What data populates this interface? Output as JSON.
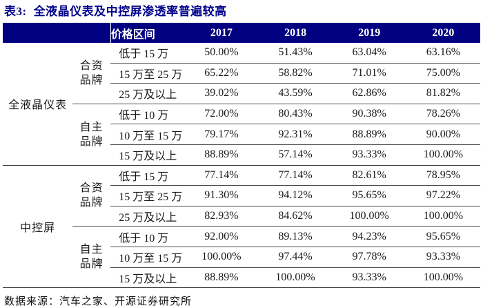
{
  "title": {
    "label": "表3:",
    "text": "全液晶仪表及中控屏渗透率普遍较高"
  },
  "colors": {
    "header_background": "#000080",
    "header_text": "#ffffff",
    "title_text": "#00008B",
    "rule_line": "#3a3a3a",
    "body_text": "#1a1a1a"
  },
  "table": {
    "price_header": "价格区间",
    "years": [
      "2017",
      "2018",
      "2019",
      "2020"
    ],
    "sections": [
      {
        "category": "全液晶仪表",
        "groups": [
          {
            "brand": [
              "合资",
              "品牌"
            ],
            "rows": [
              {
                "range": "低于 15 万",
                "values": [
                  "50.00%",
                  "51.43%",
                  "63.04%",
                  "63.16%"
                ]
              },
              {
                "range": "15 万至 25 万",
                "values": [
                  "65.22%",
                  "58.82%",
                  "71.01%",
                  "75.00%"
                ]
              },
              {
                "range": "25 万及以上",
                "values": [
                  "39.02%",
                  "43.59%",
                  "62.86%",
                  "81.82%"
                ]
              }
            ]
          },
          {
            "brand": [
              "自主",
              "品牌"
            ],
            "rows": [
              {
                "range": "低于 10 万",
                "values": [
                  "72.00%",
                  "80.43%",
                  "90.38%",
                  "78.26%"
                ]
              },
              {
                "range": "10 万至 15 万",
                "values": [
                  "79.17%",
                  "92.31%",
                  "88.89%",
                  "90.00%"
                ]
              },
              {
                "range": "15 万及以上",
                "values": [
                  "88.89%",
                  "57.14%",
                  "93.33%",
                  "100.00%"
                ]
              }
            ]
          }
        ]
      },
      {
        "category": "中控屏",
        "groups": [
          {
            "brand": [
              "合资",
              "品牌"
            ],
            "rows": [
              {
                "range": "低于 15 万",
                "values": [
                  "77.14%",
                  "77.14%",
                  "82.61%",
                  "78.95%"
                ]
              },
              {
                "range": "15 万至 25 万",
                "values": [
                  "91.30%",
                  "94.12%",
                  "95.65%",
                  "97.22%"
                ]
              },
              {
                "range": "25 万及以上",
                "values": [
                  "82.93%",
                  "84.62%",
                  "100.00%",
                  "100.00%"
                ]
              }
            ]
          },
          {
            "brand": [
              "自主",
              "品牌"
            ],
            "rows": [
              {
                "range": "低于 10 万",
                "values": [
                  "92.00%",
                  "89.13%",
                  "94.23%",
                  "95.65%"
                ]
              },
              {
                "range": "10 万至 15 万",
                "values": [
                  "100.00%",
                  "97.44%",
                  "97.78%",
                  "93.33%"
                ]
              },
              {
                "range": "15 万及以上",
                "values": [
                  "88.89%",
                  "100.00%",
                  "93.33%",
                  "100.00%"
                ]
              }
            ]
          }
        ]
      }
    ]
  },
  "footer": {
    "source": "数据来源：汽车之家、开源证券研究所"
  }
}
